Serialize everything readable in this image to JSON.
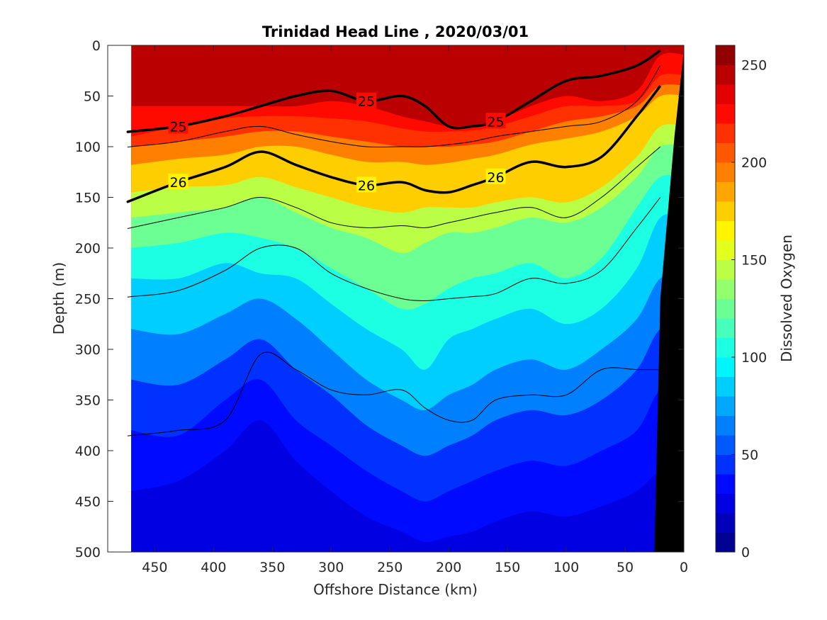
{
  "chart_data": {
    "type": "contour",
    "title": "Trinidad Head Line , 2020/03/01",
    "xlabel": "Offshore Distance (km)",
    "ylabel": "Depth (m)",
    "colorbar_label": "Dissolved Oxygen",
    "xlim": [
      490,
      0
    ],
    "ylim": [
      0,
      500
    ],
    "x_reversed": true,
    "y_reversed": true,
    "x_ticks": [
      "450",
      "400",
      "350",
      "300",
      "250",
      "200",
      "150",
      "100",
      "50",
      "0"
    ],
    "x_tick_values": [
      450,
      400,
      350,
      300,
      250,
      200,
      150,
      100,
      50,
      0
    ],
    "y_ticks": [
      "0",
      "50",
      "100",
      "150",
      "200",
      "250",
      "300",
      "350",
      "400",
      "450",
      "500"
    ],
    "y_tick_values": [
      0,
      50,
      100,
      150,
      200,
      250,
      300,
      350,
      400,
      450,
      500
    ],
    "colorbar_ticks": [
      "0",
      "50",
      "100",
      "150",
      "200",
      "250"
    ],
    "colorbar_tick_values": [
      0,
      50,
      100,
      150,
      200,
      250
    ],
    "colorbar_range": [
      0,
      260
    ],
    "colorbar_levels": 26,
    "colormap": "jet",
    "data_extent_x": [
      470,
      0
    ],
    "seafloor_color": "#000000",
    "profile_x": [
      470,
      430,
      390,
      360,
      330,
      300,
      270,
      240,
      220,
      200,
      180,
      160,
      130,
      100,
      70,
      40,
      20
    ],
    "oxygen_isolines_depth": {
      "isolines": [
        {
          "level": 230,
          "depth": [
            60,
            60,
            60,
            60,
            60,
            55,
            60,
            70,
            75,
            80,
            80,
            75,
            60,
            50,
            55,
            45,
            10
          ]
        },
        {
          "level": 220,
          "depth": [
            90,
            80,
            72,
            70,
            70,
            72,
            75,
            82,
            85,
            85,
            84,
            80,
            70,
            60,
            60,
            55,
            30
          ]
        },
        {
          "level": 200,
          "depth": [
            100,
            95,
            90,
            85,
            85,
            90,
            95,
            100,
            100,
            100,
            98,
            95,
            85,
            75,
            70,
            60,
            40
          ]
        },
        {
          "level": 180,
          "depth": [
            118,
            112,
            108,
            100,
            100,
            108,
            115,
            115,
            118,
            116,
            112,
            108,
            98,
            92,
            85,
            70,
            50
          ]
        },
        {
          "level": 150,
          "depth": [
            145,
            140,
            138,
            130,
            140,
            150,
            160,
            165,
            160,
            160,
            160,
            155,
            150,
            155,
            140,
            110,
            80
          ]
        },
        {
          "level": 130,
          "depth": [
            170,
            165,
            160,
            150,
            165,
            180,
            190,
            205,
            195,
            185,
            185,
            180,
            170,
            175,
            160,
            130,
            100
          ]
        },
        {
          "level": 110,
          "depth": [
            200,
            195,
            185,
            190,
            200,
            220,
            240,
            260,
            255,
            240,
            230,
            225,
            215,
            230,
            210,
            160,
            130
          ]
        },
        {
          "level": 90,
          "depth": [
            230,
            230,
            215,
            225,
            230,
            255,
            280,
            300,
            320,
            290,
            280,
            270,
            260,
            275,
            260,
            220,
            170
          ]
        },
        {
          "level": 70,
          "depth": [
            280,
            285,
            265,
            250,
            270,
            300,
            330,
            350,
            360,
            345,
            335,
            320,
            310,
            320,
            300,
            270,
            230
          ]
        },
        {
          "level": 55,
          "depth": [
            330,
            335,
            310,
            290,
            320,
            345,
            375,
            395,
            405,
            395,
            385,
            370,
            360,
            365,
            350,
            320,
            280
          ]
        },
        {
          "level": 45,
          "depth": [
            380,
            385,
            350,
            330,
            370,
            395,
            420,
            440,
            450,
            440,
            430,
            420,
            410,
            415,
            400,
            380,
            340
          ]
        },
        {
          "level": 35,
          "depth": [
            440,
            430,
            400,
            370,
            410,
            440,
            465,
            480,
            490,
            485,
            480,
            470,
            460,
            465,
            455,
            440,
            420
          ]
        }
      ]
    },
    "density_contours": [
      {
        "label": "25",
        "emphasized": true,
        "depth": [
          85,
          80,
          70,
          60,
          50,
          45,
          55,
          50,
          60,
          80,
          80,
          75,
          55,
          35,
          30,
          20,
          5
        ]
      },
      {
        "label": "26",
        "emphasized": true,
        "depth": [
          153,
          135,
          120,
          105,
          118,
          130,
          138,
          135,
          143,
          145,
          138,
          130,
          115,
          120,
          110,
          70,
          40
        ]
      },
      {
        "label": "",
        "emphasized": false,
        "depth": [
          100,
          95,
          85,
          80,
          88,
          95,
          100,
          100,
          100,
          98,
          95,
          90,
          85,
          80,
          75,
          55,
          20
        ]
      },
      {
        "label": "",
        "emphasized": false,
        "depth": [
          180,
          170,
          160,
          150,
          160,
          175,
          180,
          178,
          180,
          175,
          170,
          165,
          160,
          170,
          150,
          120,
          100
        ]
      },
      {
        "label": "",
        "emphasized": false,
        "depth": [
          248,
          242,
          222,
          200,
          200,
          225,
          240,
          250,
          252,
          250,
          248,
          245,
          230,
          235,
          222,
          180,
          150
        ]
      },
      {
        "label": "",
        "emphasized": false,
        "depth": [
          385,
          380,
          370,
          305,
          320,
          340,
          345,
          340,
          358,
          370,
          370,
          350,
          345,
          345,
          320,
          320,
          320
        ]
      }
    ]
  }
}
